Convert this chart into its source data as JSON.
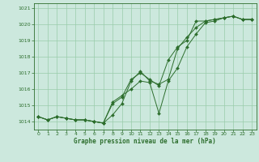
{
  "title": "Graphe pression niveau de la mer (hPa)",
  "background_color": "#cce8dd",
  "grid_color": "#99ccaa",
  "line_color": "#2d6e2d",
  "marker_color": "#2d6e2d",
  "ylim": [
    1013.5,
    1021.3
  ],
  "yticks": [
    1014,
    1015,
    1016,
    1017,
    1018,
    1019,
    1020,
    1021
  ],
  "xlim": [
    -0.5,
    23.5
  ],
  "xticks": [
    0,
    1,
    2,
    3,
    4,
    5,
    6,
    7,
    8,
    9,
    10,
    11,
    12,
    13,
    14,
    15,
    16,
    17,
    18,
    19,
    20,
    21,
    22,
    23
  ],
  "series1": [
    1014.3,
    1014.1,
    1014.3,
    1014.2,
    1014.1,
    1014.1,
    1014.0,
    1013.9,
    1014.4,
    1015.1,
    1016.5,
    1017.1,
    1016.5,
    1016.3,
    1016.6,
    1018.5,
    1019.2,
    1019.8,
    1020.2,
    1020.3,
    1020.4,
    1020.5,
    1020.3,
    1020.3
  ],
  "series2": [
    1014.3,
    1014.1,
    1014.3,
    1014.2,
    1014.1,
    1014.1,
    1014.0,
    1013.9,
    1015.1,
    1015.5,
    1016.6,
    1017.0,
    1016.6,
    1016.2,
    1017.8,
    1018.6,
    1019.0,
    1020.2,
    1020.2,
    1020.3,
    1020.4,
    1020.5,
    1020.3,
    1020.3
  ],
  "series3": [
    1014.3,
    1014.1,
    1014.3,
    1014.2,
    1014.1,
    1014.1,
    1014.0,
    1013.9,
    1015.2,
    1015.6,
    1016.0,
    1016.5,
    1016.4,
    1014.5,
    1016.5,
    1017.3,
    1018.6,
    1019.4,
    1020.1,
    1020.2,
    1020.4,
    1020.5,
    1020.3,
    1020.3
  ]
}
